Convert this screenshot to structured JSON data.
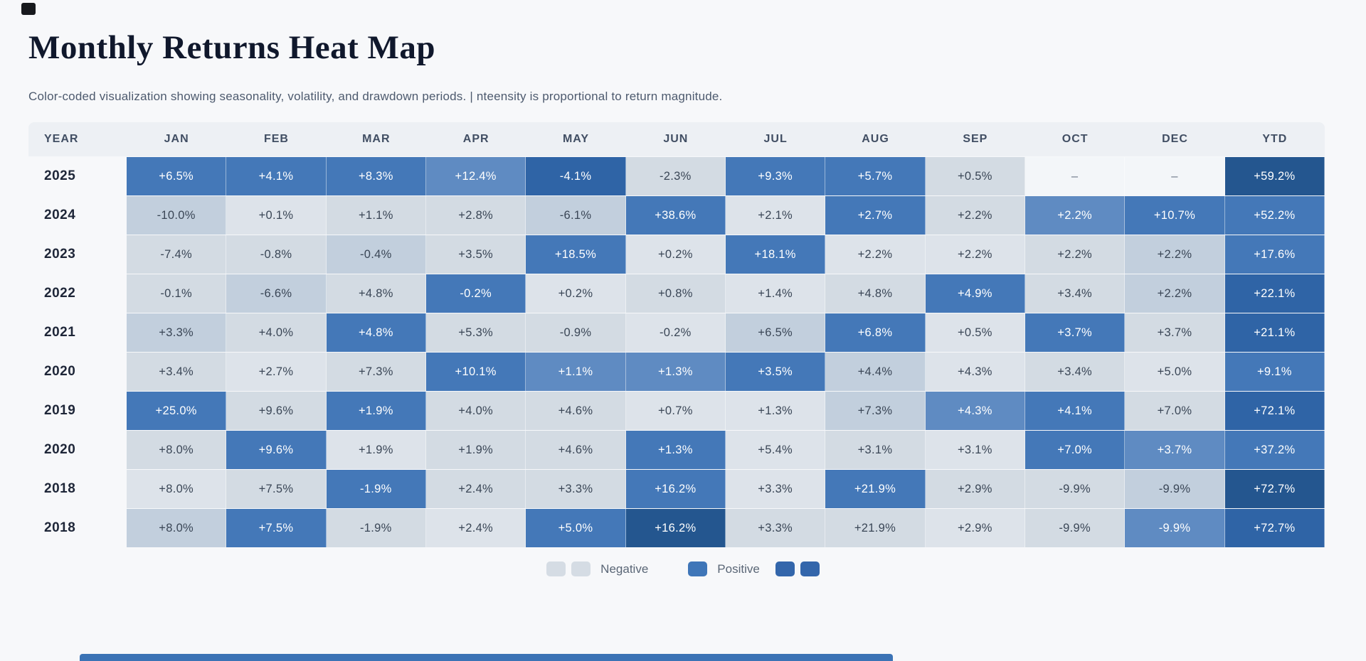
{
  "page": {
    "title": "Monthly Returns Heat Map",
    "subtitle": "Color-coded visualization showing seasonality, volatility, and drawdown periods.  | nteensity is proportional to return magnitude."
  },
  "legend": {
    "negative_label": "Negative",
    "positive_label": "Positive",
    "negative_color": "#d5dce4",
    "positive_color": "#3f76b8"
  },
  "palette": {
    "w": "#f3f6f9",
    "g0": "#dde3ea",
    "g1": "#d3dbe3",
    "g2": "#c2cfdd",
    "b1": "#5f8bc2",
    "b2": "#4478b8",
    "b3": "#2f64a6",
    "b4": "#24568f",
    "text_dark": "#3a4656",
    "text_light": "#ffffff"
  },
  "chart_data": {
    "type": "heatmap",
    "title": "Monthly Returns Heat Map",
    "columns": [
      "YEAR",
      "JAN",
      "FEB",
      "MAR",
      "APR",
      "MAY",
      "JUN",
      "JUL",
      "AUG",
      "SEP",
      "OCT",
      "DEC",
      "YTD"
    ],
    "rows": [
      {
        "year": "2025",
        "cells": [
          {
            "v": "+6.5%",
            "c": "b2"
          },
          {
            "v": "+4.1%",
            "c": "b2"
          },
          {
            "v": "+8.3%",
            "c": "b2"
          },
          {
            "v": "+12.4%",
            "c": "b1"
          },
          {
            "v": "-4.1%",
            "c": "b3"
          },
          {
            "v": "-2.3%",
            "c": "g1"
          },
          {
            "v": "+9.3%",
            "c": "b2"
          },
          {
            "v": "+5.7%",
            "c": "b2"
          },
          {
            "v": "+0.5%",
            "c": "g1"
          },
          {
            "v": "–",
            "c": "w"
          },
          {
            "v": "–",
            "c": "w"
          },
          {
            "v": "+59.2%",
            "c": "b4"
          }
        ]
      },
      {
        "year": "2024",
        "cells": [
          {
            "v": "-10.0%",
            "c": "g2"
          },
          {
            "v": "+0.1%",
            "c": "g0"
          },
          {
            "v": "+1.1%",
            "c": "g1"
          },
          {
            "v": "+2.8%",
            "c": "g1"
          },
          {
            "v": "-6.1%",
            "c": "g2"
          },
          {
            "v": "+38.6%",
            "c": "b2"
          },
          {
            "v": "+2.1%",
            "c": "g0"
          },
          {
            "v": "+2.7%",
            "c": "b2"
          },
          {
            "v": "+2.2%",
            "c": "g1"
          },
          {
            "v": "+2.2%",
            "c": "b1"
          },
          {
            "v": "+10.7%",
            "c": "b2"
          },
          {
            "v": "+52.2%",
            "c": "b2"
          }
        ]
      },
      {
        "year": "2023",
        "cells": [
          {
            "v": "-7.4%",
            "c": "g1"
          },
          {
            "v": "-0.8%",
            "c": "g1"
          },
          {
            "v": "-0.4%",
            "c": "g2"
          },
          {
            "v": "+3.5%",
            "c": "g1"
          },
          {
            "v": "+18.5%",
            "c": "b2"
          },
          {
            "v": "+0.2%",
            "c": "g0"
          },
          {
            "v": "+18.1%",
            "c": "b2"
          },
          {
            "v": "+2.2%",
            "c": "g0"
          },
          {
            "v": "+2.2%",
            "c": "g0"
          },
          {
            "v": "+2.2%",
            "c": "g1"
          },
          {
            "v": "+2.2%",
            "c": "g2"
          },
          {
            "v": "+17.6%",
            "c": "b2"
          }
        ]
      },
      {
        "year": "2022",
        "cells": [
          {
            "v": "-0.1%",
            "c": "g1"
          },
          {
            "v": "-6.6%",
            "c": "g2"
          },
          {
            "v": "+4.8%",
            "c": "g1"
          },
          {
            "v": "-0.2%",
            "c": "b2"
          },
          {
            "v": "+0.2%",
            "c": "g0"
          },
          {
            "v": "+0.8%",
            "c": "g1"
          },
          {
            "v": "+1.4%",
            "c": "g0"
          },
          {
            "v": "+4.8%",
            "c": "g1"
          },
          {
            "v": "+4.9%",
            "c": "b2"
          },
          {
            "v": "+3.4%",
            "c": "g1"
          },
          {
            "v": "+2.2%",
            "c": "g2"
          },
          {
            "v": "+22.1%",
            "c": "b3"
          }
        ]
      },
      {
        "year": "2021",
        "cells": [
          {
            "v": "+3.3%",
            "c": "g2"
          },
          {
            "v": "+4.0%",
            "c": "g1"
          },
          {
            "v": "+4.8%",
            "c": "b2"
          },
          {
            "v": "+5.3%",
            "c": "g1"
          },
          {
            "v": "-0.9%",
            "c": "g1"
          },
          {
            "v": "-0.2%",
            "c": "g0"
          },
          {
            "v": "+6.5%",
            "c": "g2"
          },
          {
            "v": "+6.8%",
            "c": "b2"
          },
          {
            "v": "+0.5%",
            "c": "g0"
          },
          {
            "v": "+3.7%",
            "c": "b2"
          },
          {
            "v": "+3.7%",
            "c": "g1"
          },
          {
            "v": "+21.1%",
            "c": "b3"
          }
        ]
      },
      {
        "year": "2020",
        "cells": [
          {
            "v": "+3.4%",
            "c": "g1"
          },
          {
            "v": "+2.7%",
            "c": "g0"
          },
          {
            "v": "+7.3%",
            "c": "g1"
          },
          {
            "v": "+10.1%",
            "c": "b2"
          },
          {
            "v": "+1.1%",
            "c": "b1"
          },
          {
            "v": "+1.3%",
            "c": "b1"
          },
          {
            "v": "+3.5%",
            "c": "b2"
          },
          {
            "v": "+4.4%",
            "c": "g2"
          },
          {
            "v": "+4.3%",
            "c": "g0"
          },
          {
            "v": "+3.4%",
            "c": "g1"
          },
          {
            "v": "+5.0%",
            "c": "g0"
          },
          {
            "v": "+9.1%",
            "c": "b2"
          }
        ]
      },
      {
        "year": "2019",
        "cells": [
          {
            "v": "+25.0%",
            "c": "b2"
          },
          {
            "v": "+9.6%",
            "c": "g1"
          },
          {
            "v": "+1.9%",
            "c": "b2"
          },
          {
            "v": "+4.0%",
            "c": "g1"
          },
          {
            "v": "+4.6%",
            "c": "g1"
          },
          {
            "v": "+0.7%",
            "c": "g0"
          },
          {
            "v": "+1.3%",
            "c": "g0"
          },
          {
            "v": "+7.3%",
            "c": "g2"
          },
          {
            "v": "+4.3%",
            "c": "b1"
          },
          {
            "v": "+4.1%",
            "c": "b2"
          },
          {
            "v": "+7.0%",
            "c": "g1"
          },
          {
            "v": "+72.1%",
            "c": "b3"
          }
        ]
      },
      {
        "year": "2020",
        "cells": [
          {
            "v": "+8.0%",
            "c": "g1"
          },
          {
            "v": "+9.6%",
            "c": "b2"
          },
          {
            "v": "+1.9%",
            "c": "g0"
          },
          {
            "v": "+1.9%",
            "c": "g1"
          },
          {
            "v": "+4.6%",
            "c": "g1"
          },
          {
            "v": "+1.3%",
            "c": "b2"
          },
          {
            "v": "+5.4%",
            "c": "g0"
          },
          {
            "v": "+3.1%",
            "c": "g1"
          },
          {
            "v": "+3.1%",
            "c": "g0"
          },
          {
            "v": "+7.0%",
            "c": "b2"
          },
          {
            "v": "+3.7%",
            "c": "b1"
          },
          {
            "v": "+37.2%",
            "c": "b2"
          }
        ]
      },
      {
        "year": "2018",
        "cells": [
          {
            "v": "+8.0%",
            "c": "g0"
          },
          {
            "v": "+7.5%",
            "c": "g1"
          },
          {
            "v": "-1.9%",
            "c": "b2"
          },
          {
            "v": "+2.4%",
            "c": "g1"
          },
          {
            "v": "+3.3%",
            "c": "g1"
          },
          {
            "v": "+16.2%",
            "c": "b2"
          },
          {
            "v": "+3.3%",
            "c": "g0"
          },
          {
            "v": "+21.9%",
            "c": "b2"
          },
          {
            "v": "+2.9%",
            "c": "g1"
          },
          {
            "v": "-9.9%",
            "c": "g1"
          },
          {
            "v": "-9.9%",
            "c": "g2"
          },
          {
            "v": "+72.7%",
            "c": "b4"
          }
        ]
      },
      {
        "year": "2018",
        "cells": [
          {
            "v": "+8.0%",
            "c": "g2"
          },
          {
            "v": "+7.5%",
            "c": "b2"
          },
          {
            "v": "-1.9%",
            "c": "g1"
          },
          {
            "v": "+2.4%",
            "c": "g0"
          },
          {
            "v": "+5.0%",
            "c": "b2"
          },
          {
            "v": "+16.2%",
            "c": "b4"
          },
          {
            "v": "+3.3%",
            "c": "g1"
          },
          {
            "v": "+21.9%",
            "c": "g1"
          },
          {
            "v": "+2.9%",
            "c": "g0"
          },
          {
            "v": "-9.9%",
            "c": "g1"
          },
          {
            "v": "-9.9%",
            "c": "b1"
          },
          {
            "v": "+72.7%",
            "c": "b3"
          }
        ]
      }
    ]
  }
}
